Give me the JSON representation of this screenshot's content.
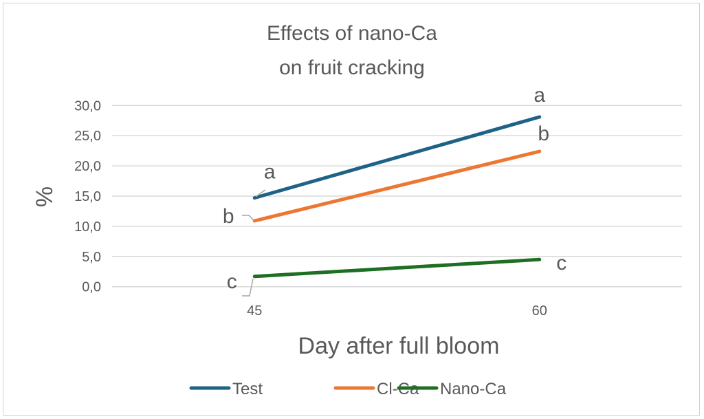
{
  "chart_data": {
    "type": "line",
    "title": [
      "Effects of nano-Ca",
      "on fruit cracking"
    ],
    "xlabel": "Day after full bloom",
    "ylabel": "%",
    "categories": [
      "45",
      "60"
    ],
    "ylim": [
      0,
      30
    ],
    "yticks": [
      "0,0",
      "5,0",
      "10,0",
      "15,0",
      "20,0",
      "25,0",
      "30,0"
    ],
    "grid": true,
    "legend_position": "bottom",
    "series": [
      {
        "name": "Test",
        "color": "#1f6287",
        "values": [
          14.7,
          28.1
        ],
        "labels": [
          "a",
          "a"
        ]
      },
      {
        "name": "Cl-Ca",
        "color": "#ed7732",
        "values": [
          10.9,
          22.4
        ],
        "labels": [
          "b",
          "b"
        ]
      },
      {
        "name": "Nano-Ca",
        "color": "#1e6e23",
        "values": [
          1.7,
          4.5
        ],
        "labels": [
          "c",
          "c"
        ]
      }
    ]
  }
}
